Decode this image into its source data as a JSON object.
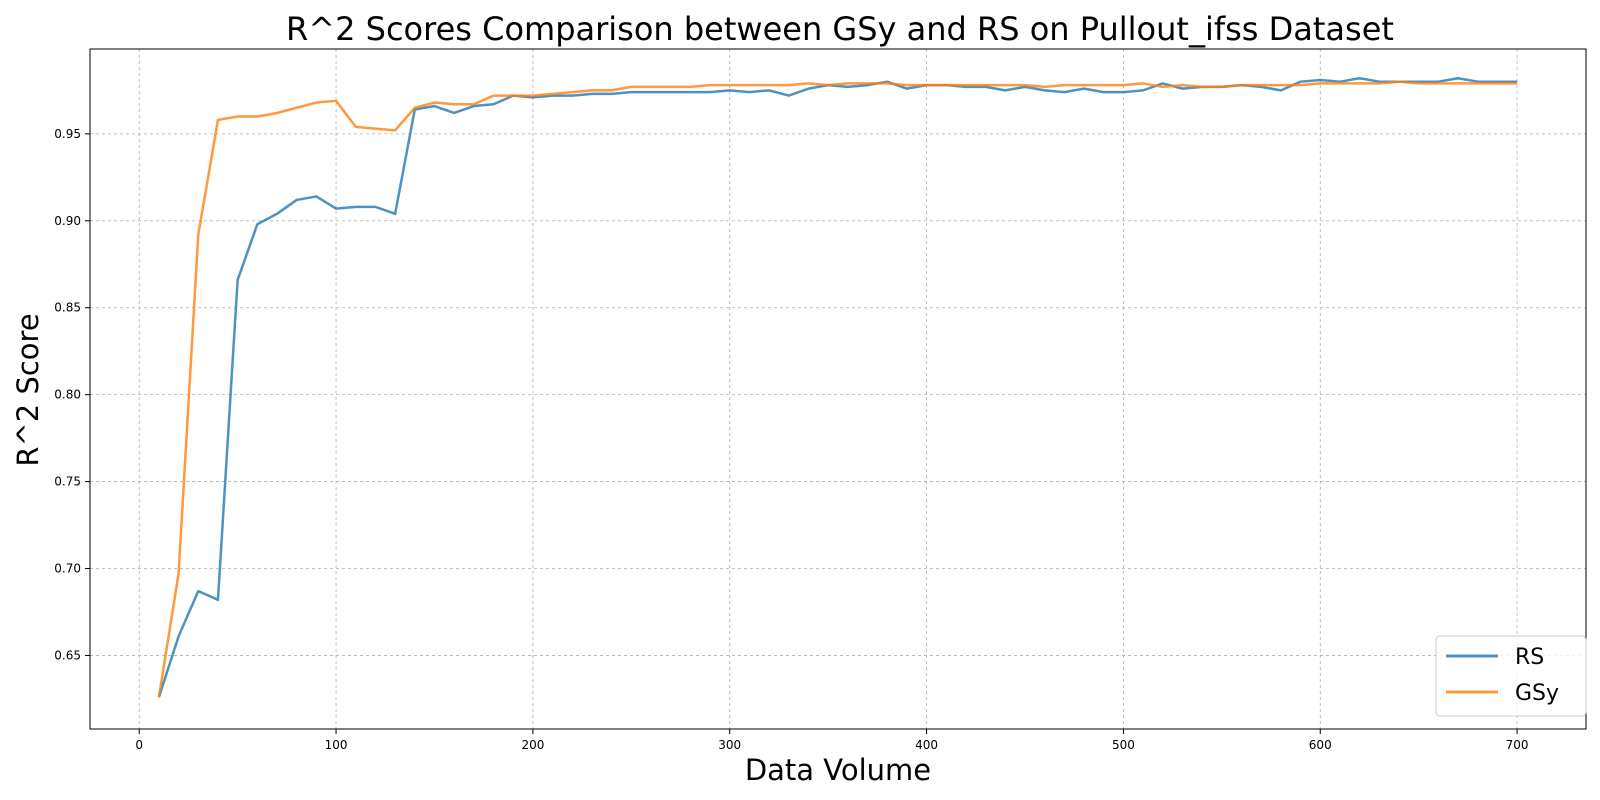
{
  "chart_data": {
    "type": "line",
    "title": "R^2 Scores Comparison between GSy and RS on Pullout_ifss Dataset",
    "xlabel": "Data Volume",
    "ylabel": "R^2 Score",
    "xlim": [
      -25,
      735
    ],
    "ylim": [
      0.6077,
      0.9988
    ],
    "xticks": [
      0,
      100,
      200,
      300,
      400,
      500,
      600,
      700
    ],
    "yticks": [
      0.65,
      0.7,
      0.75,
      0.8,
      0.85,
      0.9,
      0.95
    ],
    "grid": true,
    "legend_position": "lower right",
    "x": [
      10,
      20,
      30,
      40,
      50,
      60,
      70,
      80,
      90,
      100,
      110,
      120,
      130,
      140,
      150,
      160,
      170,
      180,
      190,
      200,
      210,
      220,
      230,
      240,
      250,
      260,
      270,
      280,
      290,
      300,
      310,
      320,
      330,
      340,
      350,
      360,
      370,
      380,
      390,
      400,
      410,
      420,
      430,
      440,
      450,
      460,
      470,
      480,
      490,
      500,
      510,
      520,
      530,
      540,
      550,
      560,
      570,
      580,
      590,
      600,
      610,
      620,
      630,
      640,
      650,
      660,
      670,
      680,
      690,
      700
    ],
    "series": [
      {
        "name": "RS",
        "color": "#1f77b4",
        "values": [
          0.626,
          0.661,
          0.687,
          0.682,
          0.866,
          0.898,
          0.904,
          0.912,
          0.914,
          0.907,
          0.908,
          0.908,
          0.904,
          0.964,
          0.966,
          0.962,
          0.966,
          0.967,
          0.972,
          0.971,
          0.972,
          0.972,
          0.973,
          0.973,
          0.974,
          0.974,
          0.974,
          0.974,
          0.974,
          0.975,
          0.974,
          0.975,
          0.972,
          0.976,
          0.978,
          0.977,
          0.978,
          0.98,
          0.976,
          0.978,
          0.978,
          0.977,
          0.977,
          0.975,
          0.977,
          0.975,
          0.974,
          0.976,
          0.974,
          0.974,
          0.975,
          0.979,
          0.976,
          0.977,
          0.977,
          0.978,
          0.977,
          0.975,
          0.98,
          0.981,
          0.98,
          0.982,
          0.98,
          0.98,
          0.98,
          0.98,
          0.982,
          0.98,
          0.98,
          0.98
        ]
      },
      {
        "name": "GSy",
        "color": "#ff7f0e",
        "values": [
          0.626,
          0.697,
          0.892,
          0.958,
          0.96,
          0.96,
          0.962,
          0.965,
          0.968,
          0.969,
          0.954,
          0.953,
          0.952,
          0.965,
          0.968,
          0.967,
          0.967,
          0.972,
          0.972,
          0.972,
          0.973,
          0.974,
          0.975,
          0.975,
          0.977,
          0.977,
          0.977,
          0.977,
          0.978,
          0.978,
          0.978,
          0.978,
          0.978,
          0.979,
          0.978,
          0.979,
          0.979,
          0.979,
          0.978,
          0.978,
          0.978,
          0.978,
          0.978,
          0.978,
          0.978,
          0.977,
          0.978,
          0.978,
          0.978,
          0.978,
          0.979,
          0.977,
          0.978,
          0.977,
          0.977,
          0.978,
          0.978,
          0.978,
          0.978,
          0.979,
          0.979,
          0.979,
          0.979,
          0.98,
          0.979,
          0.979,
          0.979,
          0.979,
          0.979,
          0.979
        ]
      }
    ]
  }
}
